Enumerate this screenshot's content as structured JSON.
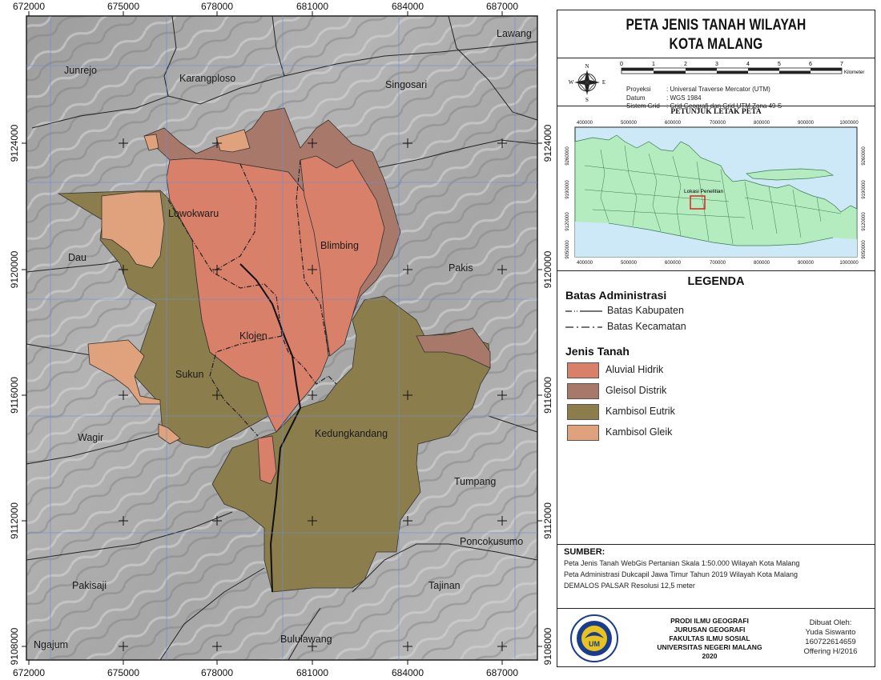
{
  "title": {
    "line1": "PETA JENIS TANAH WILAYAH",
    "line2": "KOTA MALANG"
  },
  "map": {
    "x_ticks_top": [
      "672000",
      "675000",
      "678000",
      "681000",
      "684000",
      "687000"
    ],
    "x_ticks_bottom": [
      "672000",
      "675000",
      "678000",
      "681000",
      "684000",
      "687000"
    ],
    "y_ticks": [
      "9124000",
      "9120000",
      "9116000",
      "9112000",
      "9108000"
    ],
    "places": {
      "lawang": "Lawang",
      "junrejo": "Junrejo",
      "karangploso": "Karangploso",
      "singosari": "Singosari",
      "dau": "Dau",
      "pakis": "Pakis",
      "wagir": "Wagir",
      "tumpang": "Tumpang",
      "poncokusumo": "Poncokusumo",
      "pakisaji": "Pakisaji",
      "tajinan": "Tajinan",
      "ngajum": "Ngajum",
      "bululawang": "Bululawang",
      "lowokwaru": "Lowokwaru",
      "blimbing": "Blimbing",
      "klojen": "Klojen",
      "sukun": "Sukun",
      "kedungkandang": "Kedungkandang"
    }
  },
  "compass": {
    "n": "N",
    "s": "S",
    "e": "E",
    "w": "W"
  },
  "scalebar": {
    "ticks": [
      "0",
      "1",
      "2",
      "3",
      "4",
      "5",
      "6",
      "7"
    ],
    "unit": "Kilometer"
  },
  "projection": [
    {
      "key": "Proyeksi",
      "value": ": Universal Traverse Mercator (UTM)"
    },
    {
      "key": "Datum",
      "value": ": WGS 1984"
    },
    {
      "key": "Sistem Grid",
      "value": ": Grid Geografi dan Grid UTM Zona 49 S"
    }
  ],
  "inset": {
    "title": "PETUNJUK LETAK PETA",
    "x_ticks": [
      "400000",
      "500000",
      "600000",
      "700000",
      "800000",
      "900000",
      "1000000"
    ],
    "y_ticks": [
      "9260000",
      "9190000",
      "9120000",
      "9050000"
    ],
    "label": "Lokasi Penelitian"
  },
  "legend": {
    "title": "LEGENDA",
    "admin_title": "Batas Administrasi",
    "boundaries": [
      "Batas Kabupaten",
      "Batas Kecamatan"
    ],
    "soil_title": "Jenis Tanah",
    "soils": [
      {
        "label": "Aluvial Hidrik",
        "color": "#d9806a"
      },
      {
        "label": "Gleisol Distrik",
        "color": "#a8786a"
      },
      {
        "label": "Kambisol Eutrik",
        "color": "#8c7d4c"
      },
      {
        "label": "Kambisol Gleik",
        "color": "#dfa27c"
      }
    ]
  },
  "sources": {
    "title": "SUMBER:",
    "lines": [
      "Peta Jenis Tanah WebGis Pertanian Skala 1:50.000 Wilayah Kota Malang",
      "Peta Administrasi Dukcapil Jawa Timur Tahun 2019 Wilayah Kota Malang",
      "DEMALOS PALSAR Resolusi 12,5 meter"
    ]
  },
  "footer": {
    "institution": [
      "PRODI ILMU GEOGRAFI",
      "JURUSAN GEOGRAFI",
      "FAKULTAS ILMU SOSIAL",
      "UNIVERSITAS NEGERI MALANG",
      "2020"
    ],
    "author": [
      "Dibuat Oleh:",
      "Yuda Siswanto",
      "160722614659",
      "Offering H/2016"
    ],
    "logo_text": "UM"
  },
  "colors": {
    "aluvial": "#d9806a",
    "gleisol": "#a8786a",
    "kambisol_eutrik": "#8c7d4c",
    "kambisol_gleik": "#dfa27c",
    "inset_land": "#b4ecc0",
    "inset_sea": "#cde8f6"
  }
}
